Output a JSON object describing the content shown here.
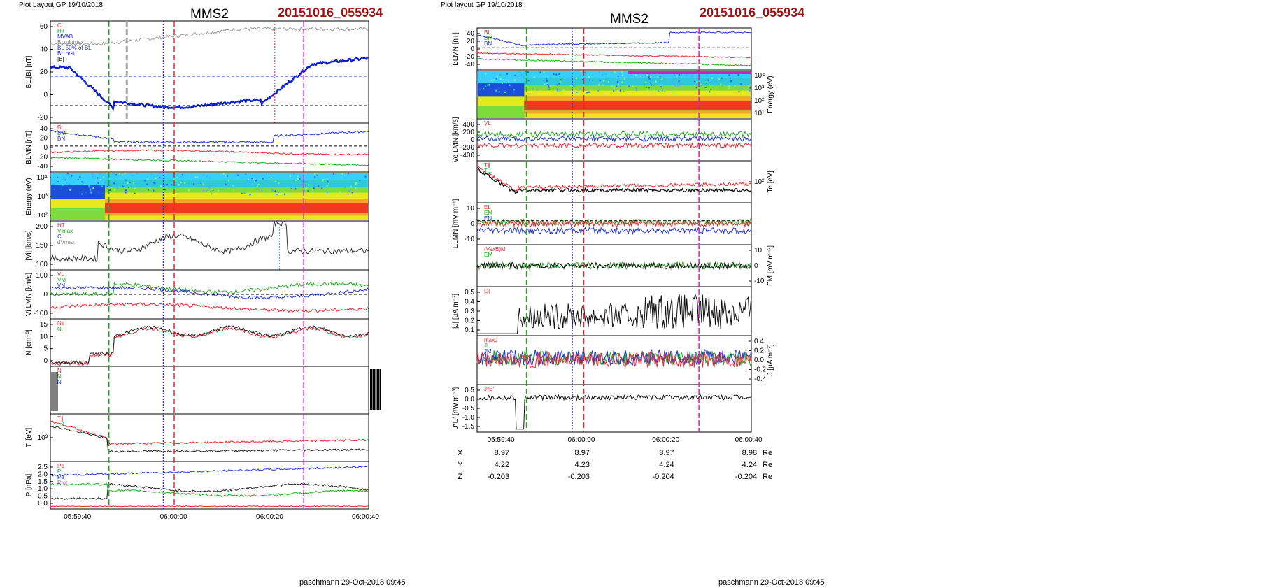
{
  "left": {
    "header": "Plot Layout GP 19/10/2018",
    "title": "MMS2",
    "datetime": "20151016_055934",
    "footer": "paschmann 29-Oct-2018 09:45",
    "time_ticks": [
      "05:59:40",
      "06:00:00",
      "06:00:20",
      "06:00:40"
    ],
    "coords": [
      {
        "label": "X",
        "values": [
          "8.97",
          "8.97",
          "8.97",
          "8.98"
        ],
        "unit": "Re"
      },
      {
        "label": "Y",
        "values": [
          "4.22",
          "4.23",
          "4.24",
          "4.24"
        ],
        "unit": "Re"
      },
      {
        "label": "Z",
        "values": [
          "-0.203",
          "-0.203",
          "-0.204",
          "-0.204"
        ],
        "unit": "Re"
      }
    ],
    "panels": [
      {
        "ylabel": "BL,|B| [nT]",
        "ticks": [
          "60",
          "40",
          "20",
          "0",
          "-20"
        ],
        "ymin": -25,
        "ymax": 65,
        "legend": [
          "Ci",
          "HT",
          "MVAB",
          "BLminmax",
          "BL 50% of BL",
          "BL brst",
          "|B|"
        ]
      },
      {
        "ylabel": "BLMN [nT]",
        "ticks": [
          "40",
          "20",
          "0",
          "-20",
          "-40"
        ],
        "ymin": -50,
        "ymax": 45,
        "legend": [
          "BL",
          "BM",
          "BN"
        ]
      },
      {
        "ylabel": "Energy (eV)",
        "ticks": [
          "10⁴",
          "10³",
          "10²"
        ],
        "ymin": 0,
        "ymax": 1,
        "legend": []
      },
      {
        "ylabel": "|Vi| [km/s]",
        "ticks": [
          "200",
          "150",
          "100"
        ],
        "ymin": 80,
        "ymax": 210,
        "legend": [
          "HT",
          "Vimax",
          "Ci",
          "dVmax"
        ]
      },
      {
        "ylabel": "Vi LMN [km/s]",
        "ticks": [
          "100",
          "0",
          "-100"
        ],
        "ymin": -150,
        "ymax": 150,
        "legend": [
          "VL",
          "VM",
          "VN"
        ]
      },
      {
        "ylabel": "N [cm⁻³]",
        "ticks": [
          "15",
          "10",
          "5",
          "0"
        ],
        "ymin": 0,
        "ymax": 17,
        "legend": [
          "Ne",
          "Ni"
        ]
      },
      {
        "ylabel": "",
        "ticks": [],
        "ymin": 0,
        "ymax": 1,
        "legend": [
          "N",
          "N",
          "N"
        ]
      },
      {
        "ylabel": "Ti [eV]",
        "ticks": [
          "10³"
        ],
        "ymin": 0,
        "ymax": 1,
        "legend": [
          "T∥",
          "T⊥"
        ]
      },
      {
        "ylabel": "P [nPa]",
        "ticks": [
          "2.5",
          "2.0",
          "1.5",
          "1.0",
          "0.5",
          "0.0"
        ],
        "ymin": 0,
        "ymax": 2.7,
        "legend": [
          "Pb",
          "Pi",
          "Pe",
          "Ptot"
        ]
      }
    ]
  },
  "right": {
    "header": "Plot layout GP 19/10/2018",
    "title": "MMS2",
    "datetime": "20151016_055934",
    "footer": "paschmann 29-Oct-2018 09:45",
    "time_ticks": [
      "05:59:40",
      "06:00:00",
      "06:00:20",
      "06:00:40"
    ],
    "coords": [
      {
        "label": "X",
        "values": [
          "8.97",
          "8.97",
          "8.97",
          "8.98"
        ],
        "unit": "Re"
      },
      {
        "label": "Y",
        "values": [
          "4.22",
          "4.23",
          "4.24",
          "4.24"
        ],
        "unit": "Re"
      },
      {
        "label": "Z",
        "values": [
          "-0.203",
          "-0.203",
          "-0.204",
          "-0.204"
        ],
        "unit": "Re"
      }
    ],
    "panels": [
      {
        "ylabel": "BLMN [nT]",
        "ticks": [
          "40",
          "20",
          "0",
          "-20",
          "-40"
        ],
        "ymin": -50,
        "ymax": 45,
        "legend": [
          "BL",
          "BM",
          "BN"
        ]
      },
      {
        "ylabel": "Energy (eV)",
        "ticks": [
          "10⁴",
          "10³",
          "10²",
          "10¹"
        ],
        "ymin": 0,
        "ymax": 1,
        "legend": []
      },
      {
        "ylabel": "Ve LMN [km/s]",
        "ticks": [
          "400",
          "200",
          "0",
          "-200",
          "-400"
        ],
        "ymin": -450,
        "ymax": 450,
        "legend": [
          "VL"
        ]
      },
      {
        "ylabel": "Te [eV]",
        "ticks": [
          "10²"
        ],
        "ymin": 0,
        "ymax": 1,
        "legend": [
          "T∥",
          "T⊥"
        ]
      },
      {
        "ylabel": "ELMN [mV m⁻¹]",
        "ticks": [
          "10",
          "0",
          "-10"
        ],
        "ymin": -17,
        "ymax": 13,
        "legend": [
          "EL",
          "EM",
          "EN"
        ]
      },
      {
        "ylabel": "EM [mV m⁻²]",
        "ticks": [
          "10",
          "0",
          "-10"
        ],
        "ymin": -15,
        "ymax": 15,
        "legend": [
          "(VexB)M",
          "EM"
        ]
      },
      {
        "ylabel": "|J| [μA m⁻²]",
        "ticks": [
          "0.5",
          "0.4",
          "0.3",
          "0.2",
          "0.1"
        ],
        "ymin": 0.03,
        "ymax": 0.52,
        "legend": [
          "|J|"
        ]
      },
      {
        "ylabel": "J [μA m⁻²]",
        "ticks": [
          "0.4",
          "0.2",
          "0.0",
          "-0.2",
          "-0.4"
        ],
        "ymin": -0.5,
        "ymax": 0.45,
        "legend": [
          "maxJ",
          "JL",
          "JM",
          "JN"
        ]
      },
      {
        "ylabel": "J*E' [nW m⁻³]",
        "ticks": [
          "0.5",
          "0.0",
          "-0.5",
          "-1.0",
          "-1.5"
        ],
        "ymin": -1.75,
        "ymax": 0.65,
        "legend": [
          "J*E'"
        ]
      }
    ]
  },
  "colors": {
    "title_red": "#a01515",
    "green": "#22aa22",
    "red": "#e8282f",
    "blue": "#2233dd",
    "magenta": "#d020c0",
    "black": "#000000",
    "gray": "#999999",
    "dashed_gray": "#bbbbbb"
  }
}
